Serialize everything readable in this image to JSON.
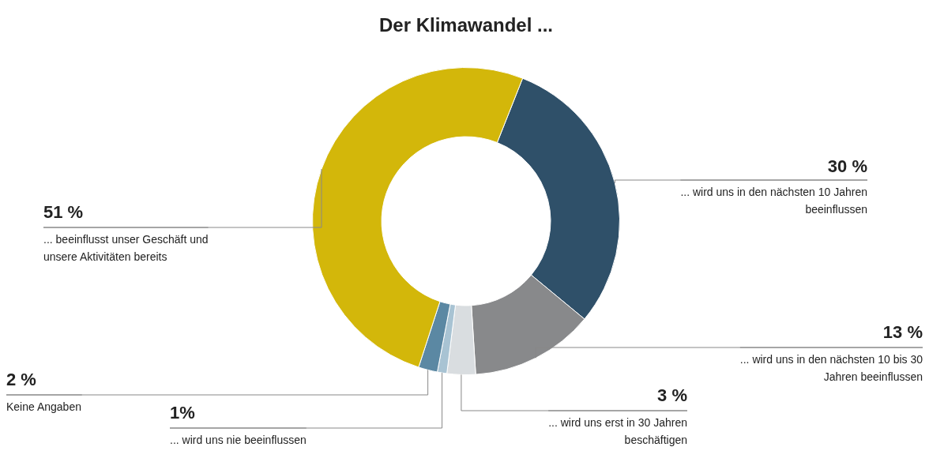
{
  "chart_data": {
    "type": "donut",
    "title": "Der Klimawandel ...",
    "categories": [
      "... wird uns in den nächsten 10 Jahren beeinflussen",
      "... wird uns in den nächsten 10 bis 30 Jahren beeinflussen",
      "... wird uns erst in 30 Jahren beschäftigen",
      "... wird uns nie beeinflussen",
      "Keine Angaben",
      "... beeinflusst unser Geschäft und unsere Aktivitäten bereits"
    ],
    "values": [
      30,
      13,
      3,
      1,
      2,
      51
    ],
    "colors": [
      "#2f5069",
      "#88898b",
      "#d9dde0",
      "#a8c3d3",
      "#5b88a3",
      "#d3b70a"
    ],
    "value_labels": [
      "30 %",
      "13 %",
      "3 %",
      "1%",
      "2 %",
      "51 %"
    ],
    "legend": false
  }
}
